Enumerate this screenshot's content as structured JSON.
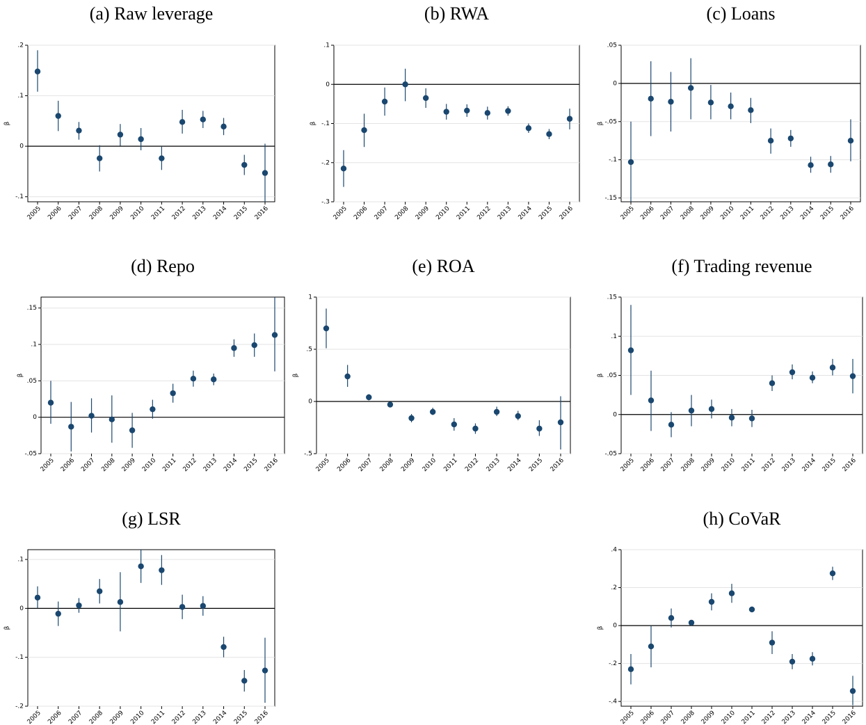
{
  "chart_data": [
    {
      "type": "errorbar",
      "title": "(a) Raw leverage",
      "ylabel": "β",
      "color": "#1a476f",
      "grid": true,
      "refline": 0,
      "categories": [
        "2005",
        "2006",
        "2007",
        "2008",
        "2009",
        "2010",
        "2011",
        "2012",
        "2013",
        "2014",
        "2015",
        "2016"
      ],
      "values": [
        0.148,
        0.06,
        0.031,
        -0.024,
        0.023,
        0.014,
        -0.024,
        0.048,
        0.053,
        0.039,
        -0.037,
        -0.053
      ],
      "lower": [
        0.108,
        0.03,
        0.013,
        -0.05,
        0.001,
        -0.008,
        -0.047,
        0.025,
        0.036,
        0.022,
        -0.057,
        -0.11
      ],
      "upper": [
        0.19,
        0.09,
        0.048,
        0.002,
        0.044,
        0.036,
        -0.001,
        0.072,
        0.07,
        0.056,
        -0.017,
        0.005
      ],
      "ylim": [
        -0.11,
        0.2
      ],
      "yticks": [
        {
          "value": 0.2,
          "label": ".2"
        },
        {
          "value": 0.1,
          "label": ".1"
        },
        0,
        {
          "value": -0.1,
          "label": "-.1"
        }
      ]
    },
    {
      "type": "errorbar",
      "title": "(b) RWA",
      "ylabel": "β",
      "color": "#1a476f",
      "grid": true,
      "refline": 0,
      "categories": [
        "2005",
        "2006",
        "2007",
        "2008",
        "2009",
        "2010",
        "2011",
        "2012",
        "2013",
        "2014",
        "2015",
        "2016"
      ],
      "values": [
        -0.215,
        -0.117,
        -0.044,
        0,
        -0.035,
        -0.07,
        -0.067,
        -0.073,
        -0.068,
        -0.112,
        -0.127,
        -0.088
      ],
      "lower": [
        -0.262,
        -0.16,
        -0.08,
        -0.043,
        -0.06,
        -0.09,
        -0.083,
        -0.09,
        -0.08,
        -0.124,
        -0.14,
        -0.115
      ],
      "upper": [
        -0.168,
        -0.075,
        -0.008,
        0.04,
        -0.01,
        -0.05,
        -0.051,
        -0.057,
        -0.056,
        -0.1,
        -0.114,
        -0.062
      ],
      "ylim": [
        -0.3,
        0.1
      ],
      "yticks": [
        {
          "value": 0.1,
          "label": ".1"
        },
        0,
        {
          "value": -0.1,
          "label": "-.1"
        },
        {
          "value": -0.2,
          "label": "-.2"
        },
        {
          "value": -0.3,
          "label": "-.3"
        }
      ]
    },
    {
      "type": "errorbar",
      "title": "(c) Loans",
      "ylabel": "β",
      "color": "#1a476f",
      "grid": true,
      "refline": 0,
      "categories": [
        "2005",
        "2006",
        "2007",
        "2008",
        "2009",
        "2010",
        "2011",
        "2012",
        "2013",
        "2014",
        "2015",
        "2016"
      ],
      "values": [
        -0.103,
        -0.02,
        -0.024,
        -0.006,
        -0.025,
        -0.03,
        -0.035,
        -0.075,
        -0.072,
        -0.107,
        -0.106,
        -0.075
      ],
      "lower": [
        -0.155,
        -0.069,
        -0.063,
        -0.047,
        -0.047,
        -0.047,
        -0.052,
        -0.092,
        -0.083,
        -0.117,
        -0.117,
        -0.102
      ],
      "upper": [
        -0.05,
        0.029,
        0.015,
        0.033,
        -0.002,
        -0.012,
        -0.019,
        -0.059,
        -0.061,
        -0.096,
        -0.095,
        -0.047
      ],
      "ylim": [
        -0.155,
        0.05
      ],
      "yticks": [
        {
          "value": 0.05,
          "label": ".05"
        },
        0,
        {
          "value": -0.05,
          "label": "-.05"
        },
        {
          "value": -0.1,
          "label": "-.1"
        },
        {
          "value": -0.15,
          "label": "-.15"
        }
      ]
    },
    {
      "type": "errorbar",
      "title": "(d) Repo",
      "ylabel": "β",
      "color": "#1a476f",
      "grid": true,
      "refline": 0,
      "categories": [
        "2005",
        "2006",
        "2007",
        "2008",
        "2009",
        "2010",
        "2011",
        "2012",
        "2013",
        "2014",
        "2015",
        "2016"
      ],
      "values": [
        0.02,
        -0.013,
        0.002,
        -0.003,
        -0.018,
        0.011,
        0.033,
        0.053,
        0.052,
        0.095,
        0.099,
        0.113
      ],
      "lower": [
        -0.009,
        -0.047,
        -0.021,
        -0.035,
        -0.042,
        -0.002,
        0.02,
        0.042,
        0.044,
        0.083,
        0.083,
        0.063
      ],
      "upper": [
        0.05,
        0.021,
        0.026,
        0.03,
        0.006,
        0.024,
        0.046,
        0.064,
        0.06,
        0.107,
        0.115,
        0.165
      ],
      "ylim": [
        -0.05,
        0.165
      ],
      "yticks": [
        {
          "value": 0.15,
          "label": ".15"
        },
        {
          "value": 0.1,
          "label": ".1"
        },
        {
          "value": 0.05,
          "label": ".05"
        },
        0,
        {
          "value": -0.05,
          "label": "-.05"
        }
      ]
    },
    {
      "type": "errorbar",
      "title": "(e) ROA",
      "ylabel": "β",
      "color": "#1a476f",
      "grid": true,
      "refline": 0,
      "categories": [
        "2005",
        "2006",
        "2007",
        "2008",
        "2009",
        "2010",
        "2011",
        "2012",
        "2013",
        "2014",
        "2015",
        "2016"
      ],
      "values": [
        0.7,
        0.24,
        0.04,
        -0.03,
        -0.16,
        -0.1,
        -0.22,
        -0.26,
        -0.1,
        -0.14,
        -0.26,
        -0.2
      ],
      "lower": [
        0.51,
        0.14,
        0.01,
        -0.05,
        -0.2,
        -0.13,
        -0.28,
        -0.31,
        -0.14,
        -0.18,
        -0.33,
        -0.46
      ],
      "upper": [
        0.89,
        0.35,
        0.07,
        -0.01,
        -0.12,
        -0.06,
        -0.16,
        -0.21,
        -0.05,
        -0.09,
        -0.18,
        0.05
      ],
      "ylim": [
        -0.5,
        1
      ],
      "yticks": [
        1,
        {
          "value": 0.5,
          "label": ".5"
        },
        0,
        {
          "value": -0.5,
          "label": "-.5"
        }
      ]
    },
    {
      "type": "errorbar",
      "title": "(f) Trading revenue",
      "ylabel": "β",
      "color": "#1a476f",
      "grid": true,
      "refline": 0,
      "categories": [
        "2005",
        "2006",
        "2007",
        "2008",
        "2009",
        "2010",
        "2011",
        "2012",
        "2013",
        "2014",
        "2015",
        "2016"
      ],
      "values": [
        0.082,
        0.018,
        -0.013,
        0.005,
        0.007,
        -0.004,
        -0.005,
        0.04,
        0.054,
        0.047,
        0.06,
        0.049
      ],
      "lower": [
        0.025,
        -0.021,
        -0.029,
        -0.015,
        -0.005,
        -0.015,
        -0.016,
        0.03,
        0.045,
        0.04,
        0.05,
        0.027
      ],
      "upper": [
        0.14,
        0.056,
        0.003,
        0.025,
        0.019,
        0.007,
        0.006,
        0.05,
        0.064,
        0.055,
        0.071,
        0.071
      ],
      "ylim": [
        -0.05,
        0.15
      ],
      "yticks": [
        {
          "value": 0.15,
          "label": ".15"
        },
        {
          "value": 0.1,
          "label": ".1"
        },
        {
          "value": 0.05,
          "label": ".05"
        },
        0,
        {
          "value": -0.05,
          "label": "-.05"
        }
      ]
    },
    {
      "type": "errorbar",
      "title": "(g) LSR",
      "ylabel": "β",
      "color": "#1a476f",
      "grid": true,
      "refline": 0,
      "categories": [
        "2005",
        "2006",
        "2007",
        "2008",
        "2009",
        "2010",
        "2011",
        "2012",
        "2013",
        "2014",
        "2015",
        "2016"
      ],
      "values": [
        0.022,
        -0.011,
        0.006,
        0.035,
        0.013,
        0.086,
        0.078,
        0.003,
        0.005,
        -0.079,
        -0.148,
        -0.127
      ],
      "lower": [
        0,
        -0.036,
        -0.009,
        0.01,
        -0.047,
        0.052,
        0.048,
        -0.022,
        -0.015,
        -0.1,
        -0.17,
        -0.193
      ],
      "upper": [
        0.045,
        0.014,
        0.021,
        0.06,
        0.074,
        0.12,
        0.109,
        0.028,
        0.025,
        -0.058,
        -0.126,
        -0.06
      ],
      "ylim": [
        -0.2,
        0.12
      ],
      "yticks": [
        {
          "value": 0.1,
          "label": ".1"
        },
        0,
        {
          "value": -0.1,
          "label": "-.1"
        },
        {
          "value": -0.2,
          "label": "-.2"
        }
      ]
    },
    {
      "type": "errorbar",
      "title": "(h) CoVaR",
      "ylabel": "β",
      "color": "#1a476f",
      "grid": true,
      "refline": 0,
      "categories": [
        "2005",
        "2006",
        "2007",
        "2008",
        "2009",
        "2010",
        "2011",
        "2012",
        "2013",
        "2014",
        "2015",
        "2016"
      ],
      "values": [
        -0.23,
        -0.11,
        0.04,
        0.015,
        0.125,
        0.17,
        0.085,
        -0.09,
        -0.19,
        -0.175,
        0.275,
        -0.345
      ],
      "lower": [
        -0.31,
        -0.22,
        -0.01,
        0.005,
        0.08,
        0.12,
        0.07,
        -0.15,
        -0.23,
        -0.21,
        0.24,
        -0.42
      ],
      "upper": [
        -0.15,
        0,
        0.09,
        0.025,
        0.17,
        0.22,
        0.1,
        -0.03,
        -0.15,
        -0.14,
        0.31,
        -0.265
      ],
      "ylim": [
        -0.425,
        0.4
      ],
      "yticks": [
        {
          "value": 0.4,
          "label": ".4"
        },
        {
          "value": 0.2,
          "label": ".2"
        },
        0,
        {
          "value": -0.2,
          "label": "-.2"
        },
        {
          "value": -0.4,
          "label": "-.4"
        }
      ]
    }
  ]
}
